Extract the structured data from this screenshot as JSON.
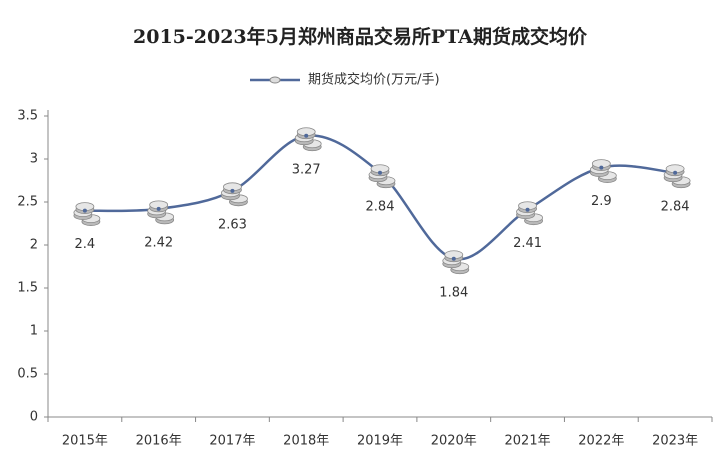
{
  "chart_data": {
    "type": "line",
    "title": "2015-2023年5月郑州商品交易所PTA期货成交均价",
    "categories": [
      "2015年",
      "2016年",
      "2017年",
      "2018年",
      "2019年",
      "2020年",
      "2021年",
      "2022年",
      "2023年"
    ],
    "series": [
      {
        "name": "期货成交均价(万元/手)",
        "color": "#50699a",
        "values": [
          2.4,
          2.42,
          2.63,
          3.27,
          2.84,
          1.84,
          2.41,
          2.9,
          2.84
        ]
      }
    ],
    "ylim": [
      0,
      3.5
    ],
    "yticks": [
      0,
      0.5,
      1,
      1.5,
      2,
      2.5,
      3,
      3.5
    ],
    "grid": false,
    "smooth": true,
    "legend": "top"
  }
}
